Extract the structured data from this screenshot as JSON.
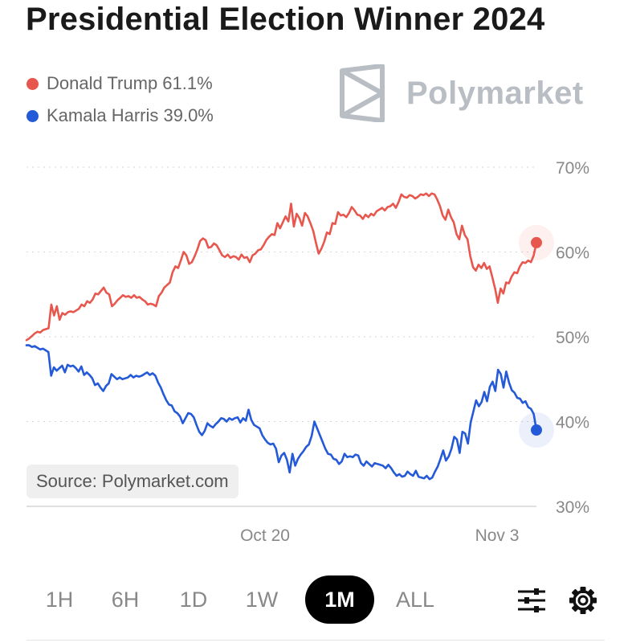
{
  "title": "Presidential Election Winner 2024",
  "brand": {
    "name": "Polymarket",
    "icon": "polymarket-logo-icon"
  },
  "source_label": "Source: Polymarket.com",
  "ranges": [
    {
      "label": "1H",
      "active": false
    },
    {
      "label": "6H",
      "active": false
    },
    {
      "label": "1D",
      "active": false
    },
    {
      "label": "1W",
      "active": false
    },
    {
      "label": "1M",
      "active": true
    },
    {
      "label": "ALL",
      "active": false
    }
  ],
  "controls": {
    "filter_icon": "sliders-icon",
    "settings_icon": "gear-icon"
  },
  "colors": {
    "trump": "#e8574e",
    "harris": "#2459d8",
    "grid": "#d5d5d5",
    "axis_text": "#888888"
  },
  "chart_data": {
    "type": "line",
    "title": "Presidential Election Winner 2024",
    "ylim": [
      30,
      70
    ],
    "y_ticks": [
      70,
      60,
      50,
      40,
      30
    ],
    "y_tick_labels": [
      "70%",
      "60%",
      "50%",
      "40%",
      "30%"
    ],
    "x_ticks": [
      "Oct 20",
      "Nov 3"
    ],
    "legend_position": "top-left",
    "grid": true,
    "series": [
      {
        "name": "Donald Trump",
        "label": "Donald Trump 61.1%",
        "last": 61.1,
        "color": "#e8574e",
        "values": [
          49.6,
          49.8,
          50.1,
          50.4,
          50.6,
          50.5,
          50.8,
          50.9,
          51.0,
          53.8,
          52.5,
          53.6,
          52.0,
          52.8,
          52.6,
          52.9,
          53.0,
          52.9,
          53.1,
          53.3,
          53.8,
          53.6,
          54.2,
          54.0,
          54.4,
          55.1,
          55.0,
          55.4,
          55.8,
          55.2,
          55.0,
          53.6,
          53.9,
          54.3,
          54.6,
          54.9,
          54.7,
          54.8,
          54.6,
          54.9,
          54.6,
          54.7,
          54.4,
          54.2,
          53.8,
          53.9,
          53.8,
          53.6,
          54.8,
          55.2,
          55.8,
          56.1,
          56.4,
          57.6,
          58.3,
          58.1,
          59.0,
          60.0,
          59.6,
          58.6,
          58.8,
          59.5,
          60.3,
          61.3,
          61.6,
          61.4,
          60.5,
          60.6,
          61.0,
          60.8,
          60.2,
          59.6,
          59.4,
          59.7,
          59.3,
          59.5,
          59.4,
          59.1,
          59.7,
          59.3,
          59.4,
          58.8,
          59.6,
          59.8,
          60.2,
          60.3,
          60.8,
          61.4,
          61.8,
          62.1,
          62.0,
          63.4,
          62.8,
          63.5,
          64.2,
          63.6,
          65.7,
          63.0,
          64.5,
          64.0,
          63.1,
          64.6,
          64.2,
          63.4,
          62.5,
          61.1,
          59.8,
          60.4,
          61.2,
          62.3,
          62.1,
          63.4,
          63.3,
          64.7,
          64.3,
          64.4,
          64.1,
          64.6,
          65.3,
          64.9,
          64.4,
          64.3,
          63.9,
          64.4,
          64.1,
          64.5,
          64.3,
          64.8,
          65.0,
          65.2,
          64.9,
          65.3,
          65.4,
          65.7,
          65.2,
          65.9,
          66.8,
          66.5,
          66.4,
          66.7,
          66.6,
          66.3,
          66.5,
          66.8,
          66.7,
          66.9,
          66.6,
          66.9,
          66.8,
          66.2,
          65.4,
          64.3,
          63.8,
          65.0,
          64.1,
          63.5,
          62.1,
          61.5,
          63.1,
          62.0,
          61.5,
          59.5,
          58.2,
          57.8,
          58.5,
          58.1,
          58.7,
          58.0,
          58.3,
          57.0,
          55.7,
          54.0,
          55.7,
          55.1,
          56.4,
          56.3,
          57.1,
          57.6,
          57.5,
          58.3,
          58.8,
          58.7,
          59.0,
          58.8,
          59.6,
          61.1
        ]
      },
      {
        "name": "Kamala Harris",
        "label": "Kamala Harris 39.0%",
        "last": 39.0,
        "color": "#2459d8",
        "values": [
          49.0,
          49.0,
          48.8,
          48.9,
          48.7,
          48.5,
          48.6,
          48.4,
          48.2,
          45.4,
          46.4,
          46.0,
          46.3,
          46.6,
          45.8,
          46.7,
          46.5,
          46.6,
          46.3,
          45.9,
          46.5,
          45.5,
          45.8,
          45.5,
          45.1,
          44.3,
          44.5,
          44.0,
          43.6,
          44.2,
          44.5,
          45.6,
          45.3,
          45.0,
          45.2,
          45.0,
          45.1,
          45.2,
          45.5,
          45.2,
          45.4,
          45.3,
          45.4,
          45.6,
          45.8,
          45.5,
          45.7,
          45.4,
          44.6,
          44.0,
          43.2,
          42.5,
          42.0,
          41.9,
          41.2,
          41.0,
          40.6,
          39.8,
          40.4,
          41.0,
          40.9,
          40.5,
          39.6,
          38.8,
          38.4,
          38.9,
          39.8,
          39.5,
          39.3,
          39.7,
          40.0,
          40.4,
          40.3,
          40.0,
          40.4,
          40.2,
          40.4,
          40.5,
          39.9,
          40.4,
          40.1,
          41.4,
          40.2,
          39.6,
          39.4,
          39.2,
          38.4,
          37.9,
          37.5,
          37.3,
          37.4,
          36.8,
          35.2,
          36.0,
          36.3,
          35.5,
          34.0,
          36.2,
          34.8,
          35.6,
          36.1,
          36.5,
          37.0,
          37.3,
          38.3,
          40.0,
          39.2,
          38.4,
          37.6,
          36.8,
          36.2,
          36.1,
          35.6,
          35.5,
          35.0,
          35.3,
          36.2,
          35.8,
          35.9,
          35.8,
          36.1,
          36.0,
          35.1,
          34.8,
          35.3,
          35.0,
          34.7,
          35.1,
          35.0,
          34.9,
          34.8,
          34.5,
          34.9,
          34.5,
          34.0,
          33.6,
          33.8,
          33.5,
          33.6,
          34.1,
          33.8,
          33.6,
          34.2,
          33.5,
          33.4,
          33.3,
          33.6,
          33.2,
          33.4,
          34.1,
          34.7,
          35.6,
          36.6,
          35.4,
          35.9,
          36.8,
          38.2,
          37.9,
          36.3,
          38.8,
          38.6,
          37.4,
          39.9,
          41.2,
          42.5,
          41.8,
          42.3,
          43.5,
          42.4,
          44.1,
          44.7,
          43.6,
          46.1,
          45.6,
          44.0,
          45.9,
          44.6,
          43.7,
          43.4,
          42.8,
          42.7,
          42.2,
          42.4,
          41.7,
          41.5,
          40.9,
          39.0
        ]
      }
    ]
  }
}
